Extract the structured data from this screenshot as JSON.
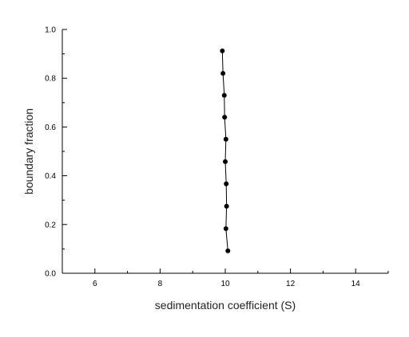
{
  "chart_data": {
    "type": "scatter",
    "xlabel": "sedimentation coefficient (S)",
    "ylabel": "boundary fraction",
    "xlim": [
      5,
      15
    ],
    "ylim": [
      0,
      1.0
    ],
    "x_major_ticks": [
      6,
      8,
      10,
      12,
      14
    ],
    "x_minor_ticks": [
      5,
      7,
      9,
      11,
      13,
      15
    ],
    "y_major_ticks": [
      0.0,
      0.2,
      0.4,
      0.6,
      0.8,
      1.0
    ],
    "y_minor_ticks": [
      0.1,
      0.3,
      0.5,
      0.7,
      0.9
    ],
    "x_tick_labels": [
      "6",
      "8",
      "10",
      "12",
      "14"
    ],
    "y_tick_labels": [
      "0.0",
      "0.2",
      "0.4",
      "0.6",
      "0.8",
      "1.0"
    ],
    "grid": false,
    "legend": "none",
    "connected": true,
    "marker_color": "#000000",
    "line_color": "#000000",
    "series": [
      {
        "points": [
          {
            "x": 10.08,
            "y": 0.092
          },
          {
            "x": 10.02,
            "y": 0.183
          },
          {
            "x": 10.04,
            "y": 0.275
          },
          {
            "x": 10.03,
            "y": 0.367
          },
          {
            "x": 10.0,
            "y": 0.458
          },
          {
            "x": 10.02,
            "y": 0.55
          },
          {
            "x": 9.98,
            "y": 0.64
          },
          {
            "x": 9.97,
            "y": 0.73
          },
          {
            "x": 9.93,
            "y": 0.82
          },
          {
            "x": 9.91,
            "y": 0.912
          }
        ]
      }
    ]
  }
}
